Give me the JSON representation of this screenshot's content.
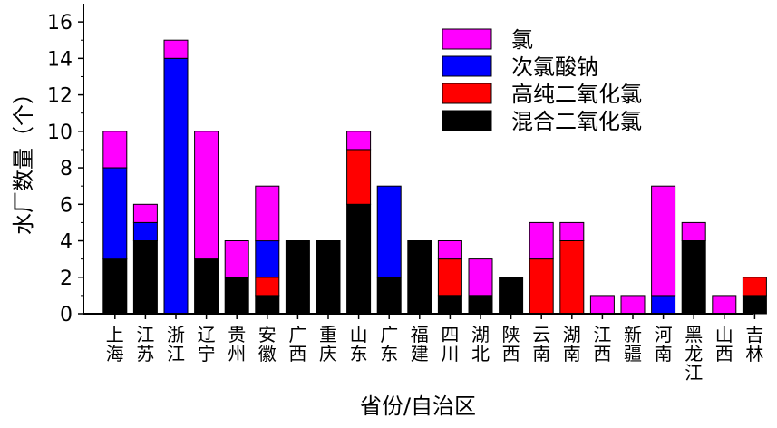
{
  "chart_data": {
    "type": "bar",
    "stacked": true,
    "categories": [
      "上海",
      "江苏",
      "浙江",
      "辽宁",
      "贵州",
      "安徽",
      "广西",
      "重庆",
      "山东",
      "广东",
      "福建",
      "四川",
      "湖北",
      "陕西",
      "云南",
      "湖南",
      "江西",
      "新疆",
      "河南",
      "黑龙江",
      "山西",
      "吉林"
    ],
    "series": [
      {
        "name": "混合二氧化氯",
        "color": "#000000",
        "values": [
          3,
          4,
          0,
          3,
          2,
          1,
          4,
          4,
          6,
          2,
          4,
          1,
          1,
          2,
          0,
          0,
          0,
          0,
          0,
          4,
          0,
          1
        ]
      },
      {
        "name": "高纯二氧化氯",
        "color": "#ff0000",
        "values": [
          0,
          0,
          0,
          0,
          0,
          1,
          0,
          0,
          3,
          0,
          0,
          2,
          0,
          0,
          3,
          4,
          0,
          0,
          0,
          0,
          0,
          1
        ]
      },
      {
        "name": "次氯酸钠",
        "color": "#0000ff",
        "values": [
          5,
          1,
          14,
          0,
          0,
          2,
          0,
          0,
          0,
          5,
          0,
          0,
          0,
          0,
          0,
          0,
          0,
          0,
          1,
          0,
          0,
          0
        ]
      },
      {
        "name": "氯",
        "color": "#ff00ff",
        "values": [
          2,
          1,
          1,
          7,
          2,
          3,
          0,
          0,
          1,
          0,
          0,
          1,
          2,
          0,
          2,
          1,
          1,
          1,
          6,
          1,
          1,
          0
        ]
      }
    ],
    "legend_order": [
      "氯",
      "次氯酸钠",
      "高纯二氧化氯",
      "混合二氧化氯"
    ],
    "legend_position": "top-right",
    "xlabel": "省份/自治区",
    "ylabel": "水厂数量（个）",
    "ylim": [
      0,
      17
    ],
    "yticks": [
      0,
      2,
      4,
      6,
      8,
      10,
      12,
      14,
      16
    ],
    "grid": false
  }
}
